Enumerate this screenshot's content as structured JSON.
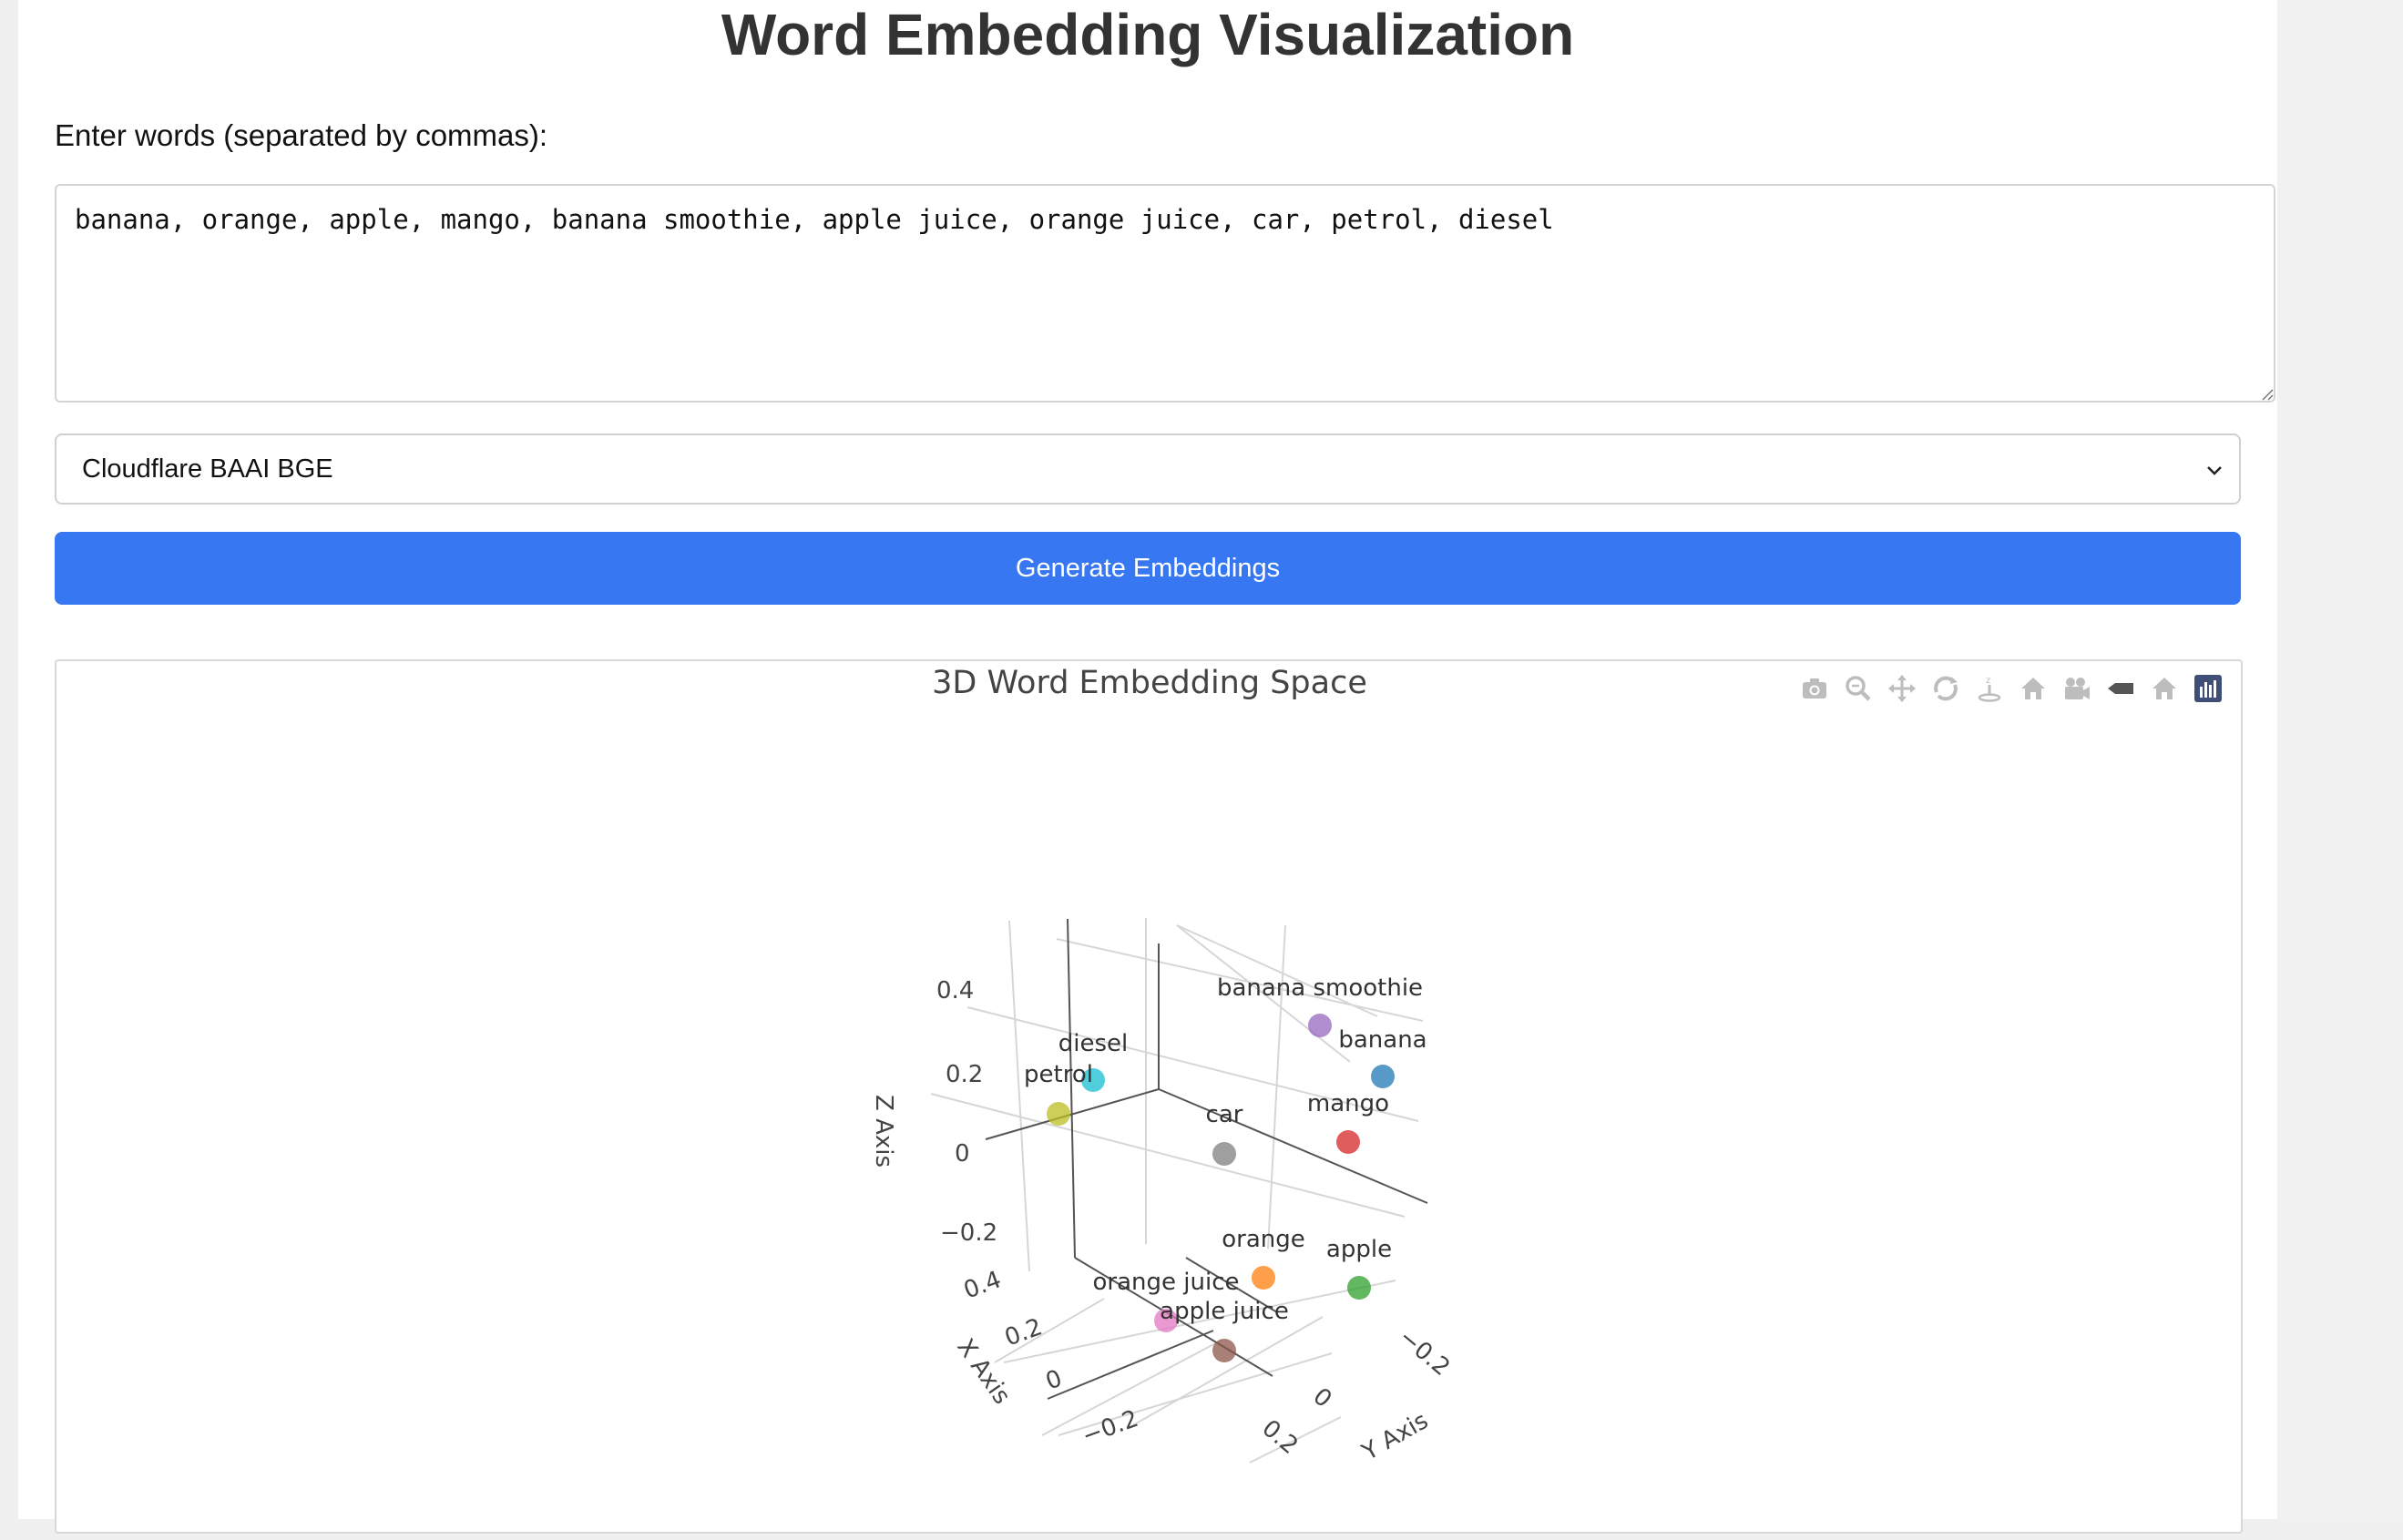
{
  "header": {
    "title": "Word Embedding Visualization"
  },
  "form": {
    "prompt_label": "Enter words (separated by commas):",
    "words_value": "banana, orange, apple, mango, banana smoothie, apple juice, orange juice, car, petrol, diesel",
    "model_selected": "Cloudflare BAAI BGE",
    "generate_label": "Generate Embeddings"
  },
  "plot": {
    "title": "3D Word Embedding Space",
    "modebar": [
      "camera-icon",
      "zoom-icon",
      "pan-icon",
      "orbit-rotation-icon",
      "turntable-rotation-icon",
      "reset-camera-default-icon",
      "reset-camera-last-save-icon",
      "toggle-spike-lines-icon",
      "reset-view-icon",
      "plotly-logo-icon"
    ]
  },
  "chart_data": {
    "type": "scatter",
    "title": "3D Word Embedding Space",
    "xlabel": "X Axis",
    "ylabel": "Y Axis",
    "zlabel": "Z Axis",
    "x_ticks": [
      "−0.2",
      "0",
      "0.2",
      "0.4"
    ],
    "y_ticks": [
      "−0.2",
      "0",
      "0.2"
    ],
    "z_ticks": [
      "−0.2",
      "0",
      "0.2",
      "0.4"
    ],
    "points": [
      {
        "label": "banana smoothie",
        "color": "#9467bd"
      },
      {
        "label": "banana",
        "color": "#1f77b4"
      },
      {
        "label": "mango",
        "color": "#d62728"
      },
      {
        "label": "diesel",
        "color": "#17becf"
      },
      {
        "label": "petrol",
        "color": "#bcbd22"
      },
      {
        "label": "car",
        "color": "#7f7f7f"
      },
      {
        "label": "orange",
        "color": "#ff7f0e"
      },
      {
        "label": "apple",
        "color": "#2ca02c"
      },
      {
        "label": "orange juice",
        "color": "#e377c2"
      },
      {
        "label": "apple juice",
        "color": "#8c564b"
      }
    ]
  }
}
